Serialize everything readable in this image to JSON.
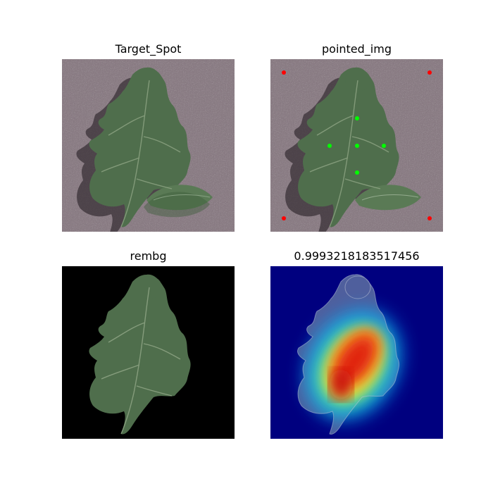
{
  "figure": {
    "panels": [
      {
        "id": "original",
        "title": "Target_Spot",
        "image_icon": "tomato-leaf-on-gravel"
      },
      {
        "id": "pointed",
        "title": "pointed_img",
        "image_icon": "tomato-leaf-with-point-markers"
      },
      {
        "id": "rembg",
        "title": "rembg",
        "image_icon": "tomato-leaf-background-removed"
      },
      {
        "id": "heatmap",
        "title": "0.9993218183517456",
        "image_icon": "leaf-attention-heatmap"
      }
    ],
    "colors": {
      "background_points": "#ff0000",
      "foreground_points": "#00ff00",
      "heatmap_cold": "#00007f",
      "heatmap_hot": "#e02010",
      "gravel": "#8a7c84",
      "leaf": "#4f6e4c"
    }
  }
}
